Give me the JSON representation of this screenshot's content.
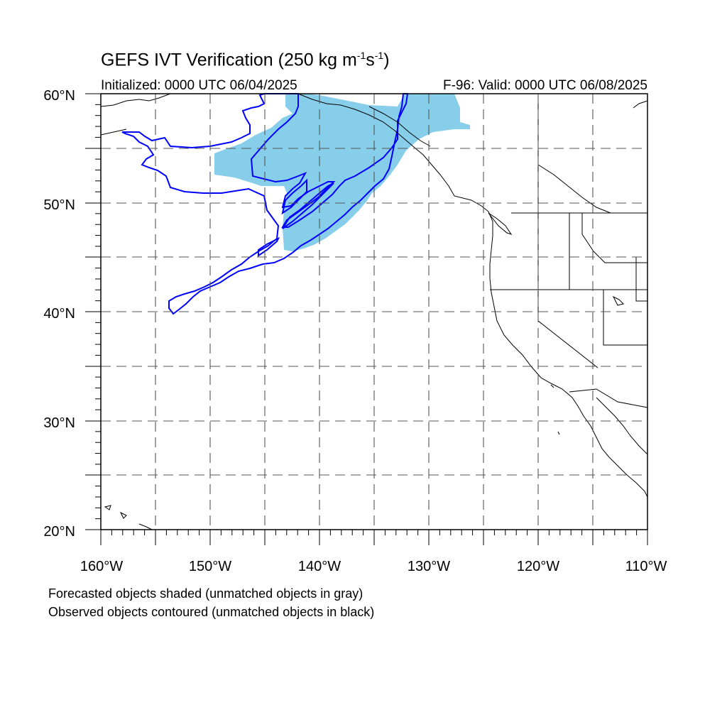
{
  "title": {
    "main": "GEFS IVT Verification (250 kg m",
    "exp1": "-1",
    "mid": "s",
    "exp2": "-1",
    "tail": ")"
  },
  "initialized": "Initialized: 0000 UTC 06/04/2025",
  "valid": "F-96: Valid: 0000 UTC 06/08/2025",
  "lat_labels": [
    "60°N",
    "50°N",
    "40°N",
    "30°N",
    "20°N"
  ],
  "lon_labels": [
    "160°W",
    "150°W",
    "140°W",
    "130°W",
    "120°W",
    "110°W"
  ],
  "notes": [
    "Forecasted objects shaded (unmatched objects in gray)",
    "Observed objects contoured (unmatched objects in black)"
  ],
  "colors": {
    "forecast_fill": "#87ceeb",
    "observed_contour": "#0000ff",
    "coastline": "#000000",
    "gridline": "#555555"
  },
  "map_extent": {
    "lon": [
      -160,
      -110
    ],
    "lat": [
      20,
      60
    ]
  }
}
